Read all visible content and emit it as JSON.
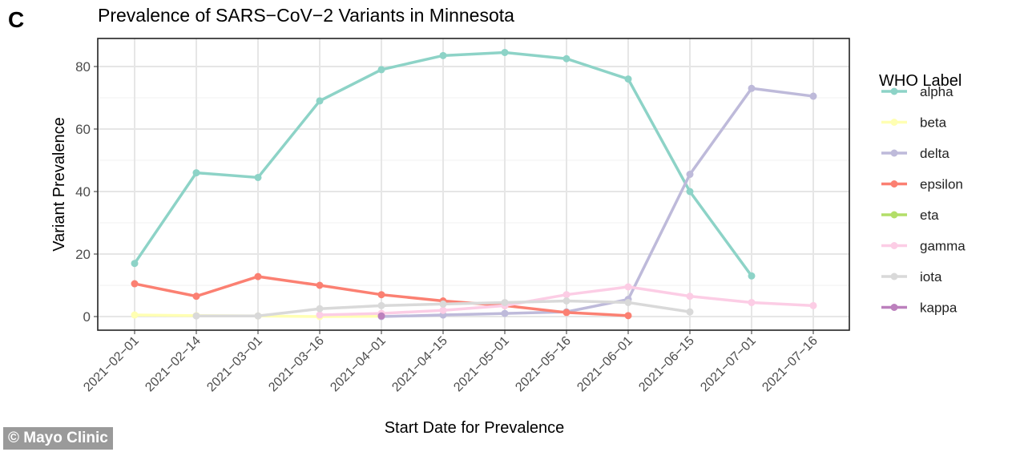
{
  "panel_letter": "C",
  "credit": "© Mayo Clinic",
  "chart_data": {
    "type": "line",
    "title": "Prevalence of SARS−CoV−2 Variants in Minnesota",
    "xlabel": "Start Date for Prevalence",
    "ylabel": "Variant Prevalence",
    "ylim": [
      -4,
      88
    ],
    "yticks": [
      0,
      20,
      40,
      60,
      80
    ],
    "grid": true,
    "legend_title": "WHO Label",
    "legend_position": "right",
    "categories": [
      "2021−02−01",
      "2021−02−14",
      "2021−03−01",
      "2021−03−16",
      "2021−04−01",
      "2021−04−15",
      "2021−05−01",
      "2021−05−16",
      "2021−06−01",
      "2021−06−15",
      "2021−07−01",
      "2021−07−16"
    ],
    "series": [
      {
        "name": "alpha",
        "color": "#8dd3c7",
        "values": [
          17,
          46,
          44.5,
          69,
          79,
          83.5,
          84.5,
          82.5,
          76,
          40,
          13,
          null
        ]
      },
      {
        "name": "beta",
        "color": "#ffffb3",
        "values": [
          0.5,
          0.3,
          0.2,
          0,
          0.1,
          null,
          null,
          null,
          null,
          null,
          null,
          null
        ]
      },
      {
        "name": "delta",
        "color": "#bebada",
        "values": [
          null,
          null,
          null,
          null,
          0,
          0.5,
          1,
          1.5,
          5.5,
          45.5,
          73,
          70.5
        ]
      },
      {
        "name": "epsilon",
        "color": "#fb8072",
        "values": [
          10.5,
          6.5,
          12.8,
          10,
          7,
          5,
          3.5,
          1.3,
          0.3,
          null,
          null,
          null
        ]
      },
      {
        "name": "eta",
        "color": "#b3de69",
        "values": [
          null,
          null,
          null,
          null,
          null,
          null,
          null,
          null,
          null,
          null,
          null,
          null
        ]
      },
      {
        "name": "gamma",
        "color": "#fccde5",
        "values": [
          null,
          null,
          null,
          0.5,
          1,
          2,
          3.5,
          7,
          9.5,
          6.5,
          4.5,
          3.5
        ]
      },
      {
        "name": "iota",
        "color": "#d9d9d9",
        "values": [
          null,
          0.2,
          0.2,
          2.5,
          3.5,
          4,
          4.5,
          5,
          4.5,
          1.5,
          null,
          null
        ]
      },
      {
        "name": "kappa",
        "color": "#bc80bd",
        "values": [
          null,
          null,
          null,
          null,
          0.2,
          null,
          null,
          null,
          null,
          null,
          null,
          null
        ]
      }
    ]
  }
}
